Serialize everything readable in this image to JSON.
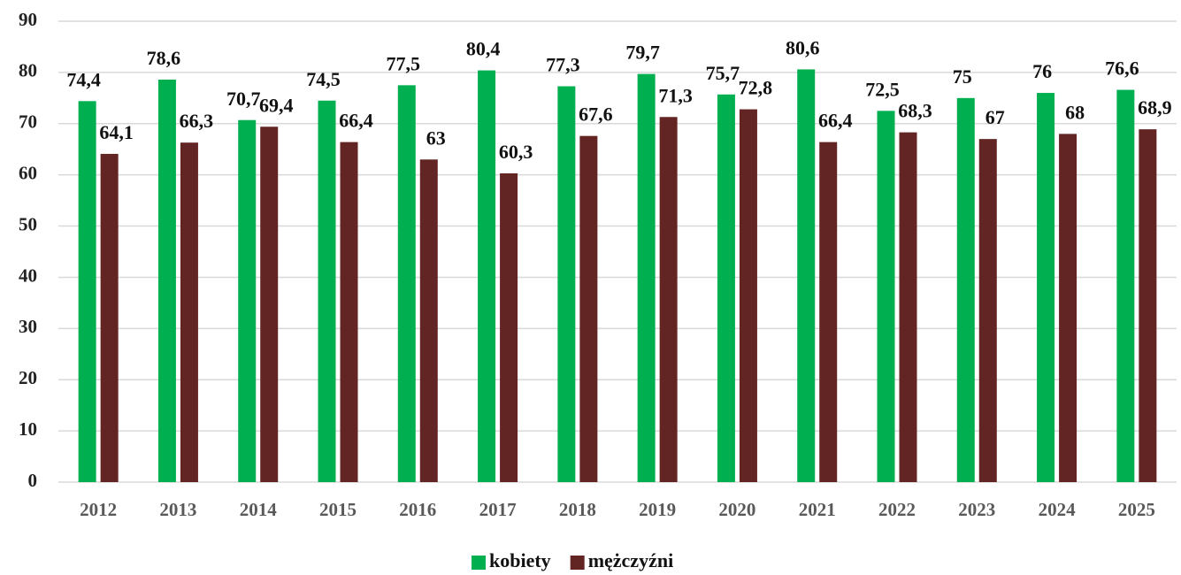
{
  "chart_data": {
    "type": "bar",
    "categories": [
      "2012",
      "2013",
      "2014",
      "2015",
      "2016",
      "2017",
      "2018",
      "2019",
      "2020",
      "2021",
      "2022",
      "2023",
      "2024",
      "2025"
    ],
    "series": [
      {
        "name": "kobiety",
        "color": "#00b050",
        "values": [
          74.4,
          78.6,
          70.7,
          74.5,
          77.5,
          80.4,
          77.3,
          79.7,
          75.7,
          80.6,
          72.5,
          75,
          76,
          76.6
        ],
        "value_labels": [
          "74,4",
          "78,6",
          "70,7",
          "74,5",
          "77,5",
          "80,4",
          "77,3",
          "79,7",
          "75,7",
          "80,6",
          "72,5",
          "75",
          "76",
          "76,6"
        ]
      },
      {
        "name": "mężczyźni",
        "color": "#632523",
        "values": [
          64.1,
          66.3,
          69.4,
          66.4,
          63,
          60.3,
          67.6,
          71.3,
          72.8,
          66.4,
          68.3,
          67,
          68,
          68.9
        ],
        "value_labels": [
          "64,1",
          "66,3",
          "69,4",
          "66,4",
          "63",
          "60,3",
          "67,6",
          "71,3",
          "72,8",
          "66,4",
          "68,3",
          "67",
          "68",
          "68,9"
        ]
      }
    ],
    "ylim": [
      0,
      90
    ],
    "yticks": [
      0,
      10,
      20,
      30,
      40,
      50,
      60,
      70,
      80,
      90
    ],
    "grid": true,
    "legend": "bottom"
  }
}
